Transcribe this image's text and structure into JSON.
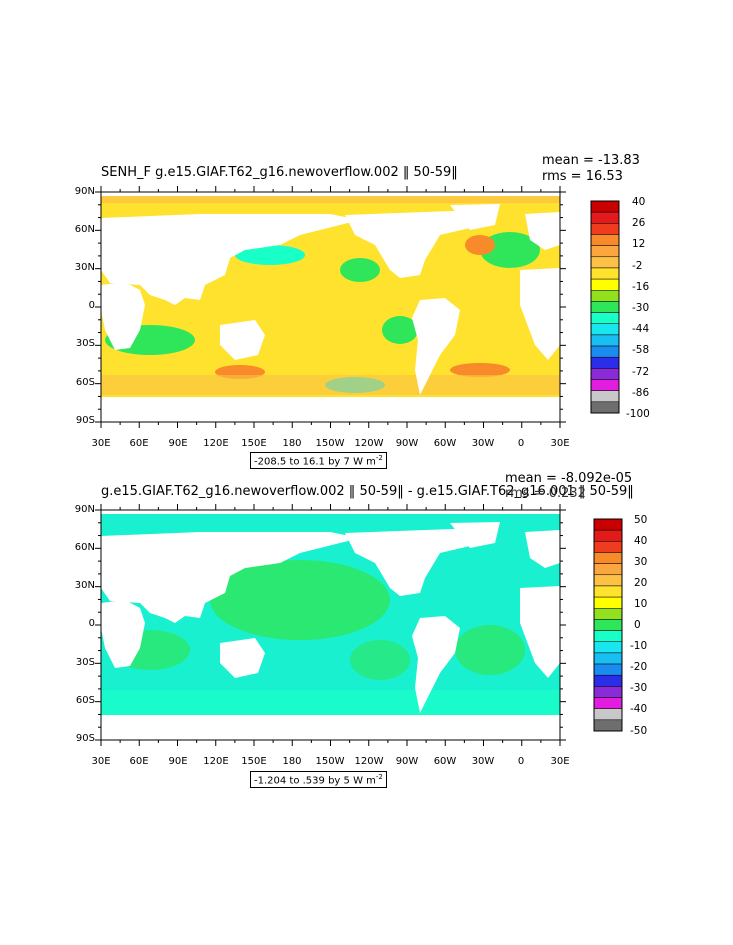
{
  "colors": {
    "land": "#ffffff",
    "frame": "#000000"
  },
  "panels": [
    {
      "title": "SENH_F g.e15.GIAF.T62_g16.newoverflow.002 ‖ 50-59‖",
      "mean": "mean = -13.83",
      "rms": "rms = 16.53",
      "range": "-208.5 to 16.1 by 7  W m",
      "range_sup": "-2",
      "colorbar": {
        "labels": [
          "40",
          "26",
          "12",
          "-2",
          "-16",
          "-30",
          "-44",
          "-58",
          "-72",
          "-86",
          "-100"
        ],
        "colors": [
          "#c80000",
          "#e31a1c",
          "#f03c1e",
          "#f88a2a",
          "#fba63f",
          "#fcc145",
          "#ffe22e",
          "#ffff00",
          "#93e01d",
          "#2fe65a",
          "#19ffc8",
          "#19e6ee",
          "#19bff2",
          "#1a8cf0",
          "#2b2ee8",
          "#8a2bd9",
          "#e21de0",
          "#c8c8c8",
          "#6e6e6e"
        ],
        "field_color": "#ffe22e"
      }
    },
    {
      "title": "g.e15.GIAF.T62_g16.newoverflow.002 ‖ 50-59‖ - g.e15.GIAF.T62_g16.001 ‖ 50-59‖",
      "mean": "mean = -8.092e-05",
      "rms": "rms = 0.232",
      "range": "-1.204 to .539 by 5  W m",
      "range_sup": "-2",
      "colorbar": {
        "labels": [
          "50",
          "40",
          "30",
          "20",
          "10",
          "0",
          "-10",
          "-20",
          "-30",
          "-40",
          "-50"
        ],
        "colors": [
          "#c80000",
          "#e31a1c",
          "#f03c1e",
          "#f88a2a",
          "#fba63f",
          "#fcc145",
          "#ffe22e",
          "#ffff00",
          "#93e01d",
          "#2fe65a",
          "#19ffc8",
          "#19e6ee",
          "#19bff2",
          "#1a8cf0",
          "#2b2ee8",
          "#8a2bd9",
          "#e21de0",
          "#c8c8c8",
          "#6e6e6e"
        ],
        "field_color": "#19f0d0"
      }
    }
  ],
  "lat_labels": [
    "90N",
    "60N",
    "30N",
    "0",
    "30S",
    "60S",
    "90S"
  ],
  "lon_labels": [
    "30E",
    "60E",
    "90E",
    "120E",
    "150E",
    "180",
    "150W",
    "120W",
    "90W",
    "60W",
    "30W",
    "0",
    "30E"
  ]
}
